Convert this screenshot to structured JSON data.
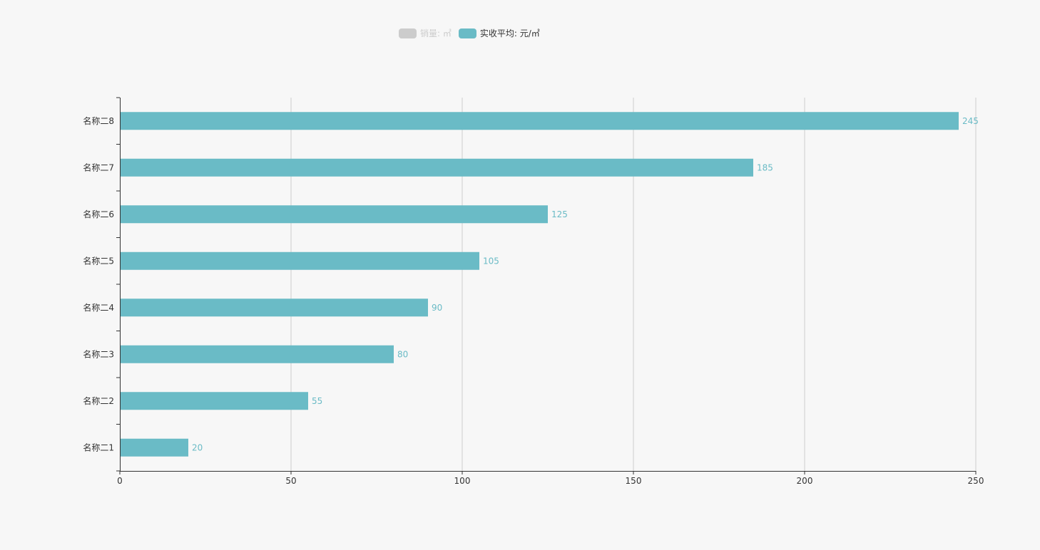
{
  "legend": [
    {
      "label": "销量: ㎡",
      "color": "#cccccc",
      "active": false
    },
    {
      "label": "实收平均: 元/㎡",
      "color": "#6abbc6",
      "active": true
    }
  ],
  "chart_data": {
    "type": "bar",
    "orientation": "horizontal",
    "categories": [
      "名称二1",
      "名称二2",
      "名称二3",
      "名称二4",
      "名称二5",
      "名称二6",
      "名称二7",
      "名称二8"
    ],
    "series": [
      {
        "name": "实收平均: 元/㎡",
        "values": [
          20,
          55,
          80,
          90,
          105,
          125,
          185,
          245
        ],
        "color": "#6abbc6"
      }
    ],
    "xlim": [
      0,
      250
    ],
    "xticks": [
      0,
      50,
      100,
      150,
      200,
      250
    ],
    "title": "",
    "xlabel": "",
    "ylabel": "",
    "grid": "vertical",
    "data_labels": true,
    "legend_position": "top-center"
  }
}
